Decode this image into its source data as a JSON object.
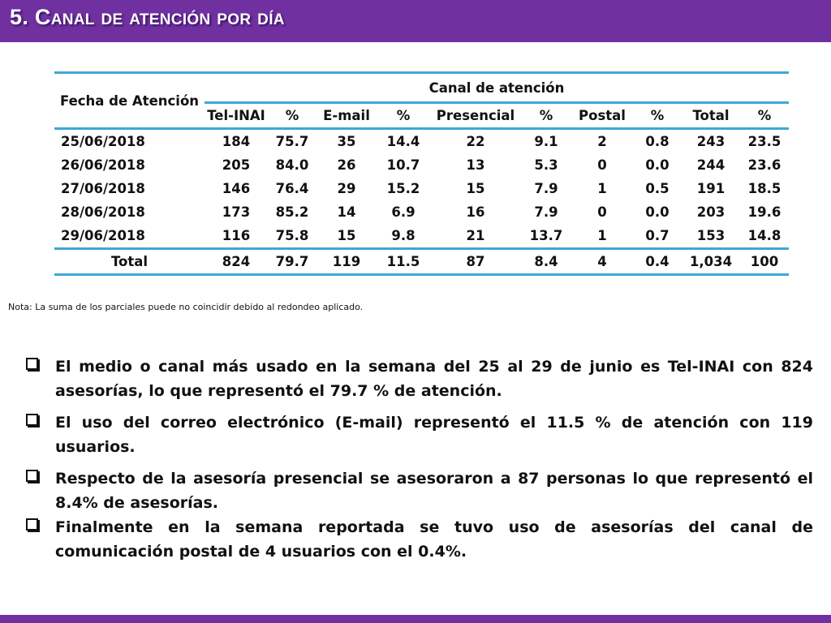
{
  "header": {
    "title": "5. Canal de atención por día"
  },
  "table": {
    "row_header": "Fecha de Atención",
    "group_header": "Canal de atención",
    "columns": [
      "Tel-INAI",
      "%",
      "E-mail",
      "%",
      "Presencial",
      "%",
      "Postal",
      "%",
      "Total",
      "%"
    ],
    "rows": [
      {
        "date": "25/06/2018",
        "cells": [
          "184",
          "75.7",
          "35",
          "14.4",
          "22",
          "9.1",
          "2",
          "0.8",
          "243",
          "23.5"
        ]
      },
      {
        "date": "26/06/2018",
        "cells": [
          "205",
          "84.0",
          "26",
          "10.7",
          "13",
          "5.3",
          "0",
          "0.0",
          "244",
          "23.6"
        ]
      },
      {
        "date": "27/06/2018",
        "cells": [
          "146",
          "76.4",
          "29",
          "15.2",
          "15",
          "7.9",
          "1",
          "0.5",
          "191",
          "18.5"
        ]
      },
      {
        "date": "28/06/2018",
        "cells": [
          "173",
          "85.2",
          "14",
          "6.9",
          "16",
          "7.9",
          "0",
          "0.0",
          "203",
          "19.6"
        ]
      },
      {
        "date": "29/06/2018",
        "cells": [
          "116",
          "75.8",
          "15",
          "9.8",
          "21",
          "13.7",
          "1",
          "0.7",
          "153",
          "14.8"
        ]
      }
    ],
    "total": {
      "label": "Total",
      "cells": [
        "824",
        "79.7",
        "119",
        "11.5",
        "87",
        "8.4",
        "4",
        "0.4",
        "1,034",
        "100"
      ]
    }
  },
  "note": "Nota: La suma de los parciales puede no coincidir debido al redondeo aplicado.",
  "bullets": [
    "El medio o canal más usado en la semana del 25 al 29 de junio es Tel-INAI con 824 asesorías, lo que representó el 79.7 % de atención.",
    "El uso del correo electrónico (E-mail) representó el 11.5 % de atención con 119 usuarios.",
    "Respecto de la asesoría presencial se asesoraron a 87 personas lo que representó el 8.4% de asesorías.",
    "Finalmente en la semana reportada  se tuvo uso de asesorías del canal de comunicación postal de 4 usuarios con el 0.4%."
  ],
  "colors": {
    "header_bg": "#7030a0",
    "table_rule": "#3fa7d8",
    "footer_bg": "#7030a0"
  }
}
